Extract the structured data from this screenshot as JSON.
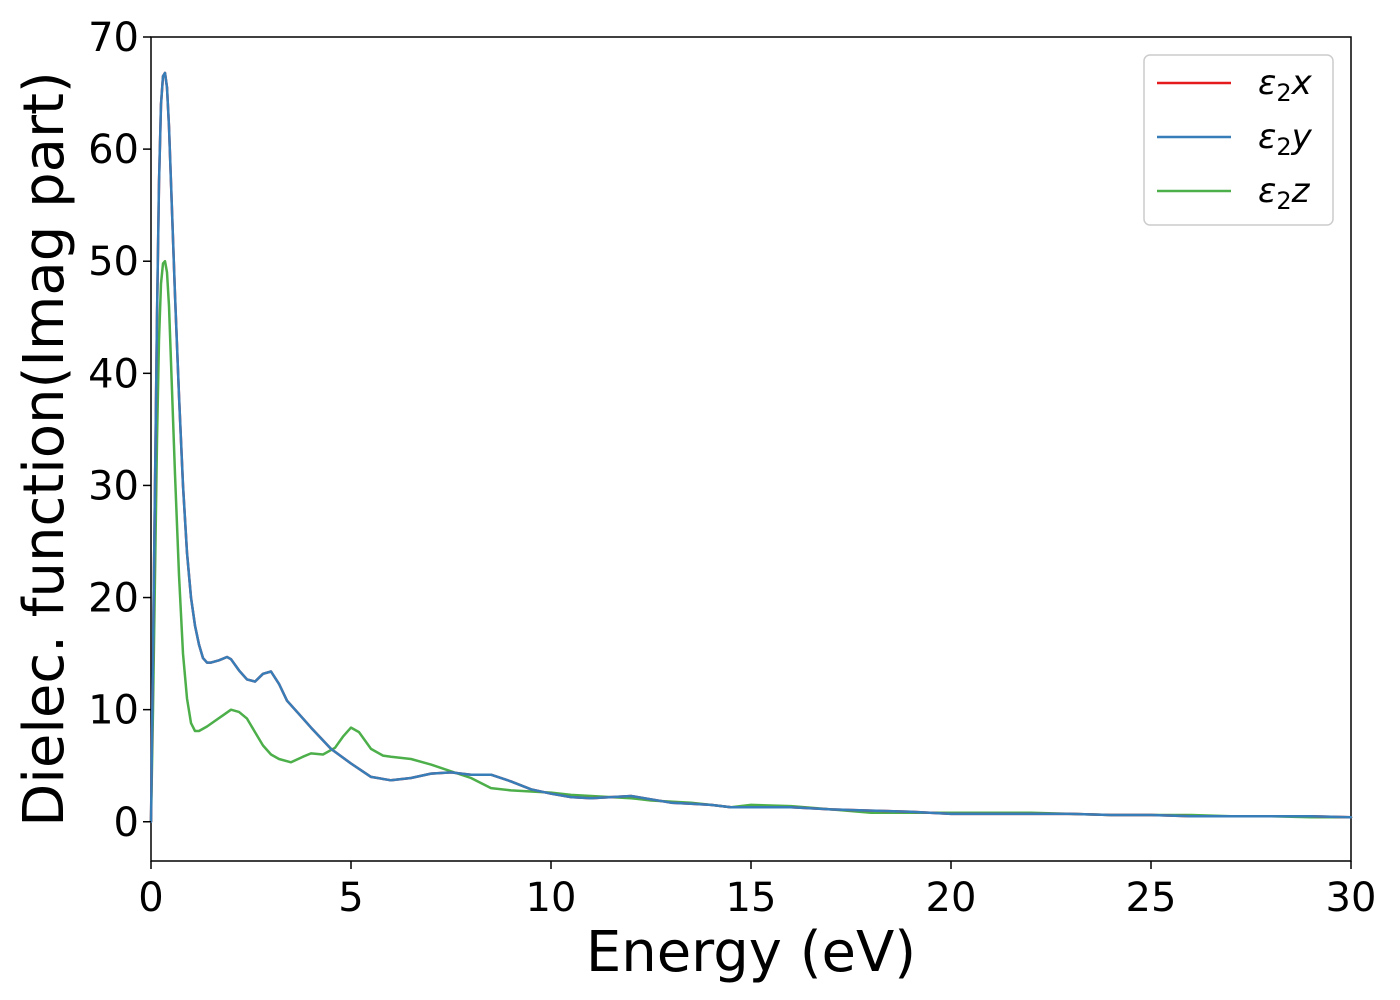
{
  "chart_data": {
    "type": "line",
    "xlabel": "Energy (eV)",
    "ylabel": "Dielec. function(Imag part)",
    "xlim": [
      0,
      30
    ],
    "ylim": [
      -3.5,
      70
    ],
    "xticks": [
      0,
      5,
      10,
      15,
      20,
      25,
      30
    ],
    "yticks": [
      0,
      10,
      20,
      30,
      40,
      50,
      60,
      70
    ],
    "grid": false,
    "legend_position": "top-right",
    "series": [
      {
        "name": "ε2x",
        "legend": {
          "base": "ε",
          "sub": "2",
          "tail": "x"
        },
        "color": "#e41a1c",
        "x": [
          0,
          0.05,
          0.1,
          0.15,
          0.2,
          0.25,
          0.3,
          0.35,
          0.4,
          0.45,
          0.5,
          0.6,
          0.7,
          0.8,
          0.9,
          1.0,
          1.1,
          1.2,
          1.3,
          1.4,
          1.5,
          1.7,
          1.9,
          2.0,
          2.2,
          2.4,
          2.6,
          2.8,
          3.0,
          3.2,
          3.4,
          3.7,
          4.0,
          4.5,
          5.0,
          5.5,
          6.0,
          6.5,
          7.0,
          7.5,
          8.0,
          8.5,
          9.0,
          9.5,
          10.0,
          10.5,
          11.0,
          11.5,
          12.0,
          12.5,
          13.0,
          13.5,
          14.0,
          14.5,
          15.0,
          16.0,
          17.0,
          18.0,
          19.0,
          20.0,
          21.0,
          22.0,
          23.0,
          24.0,
          25.0,
          26.0,
          27.0,
          28.0,
          29.0,
          30.0
        ],
        "values": [
          0,
          15,
          30,
          45,
          57,
          64,
          66.5,
          66.8,
          65.5,
          62,
          57,
          47,
          38,
          30,
          24,
          20,
          17.5,
          15.8,
          14.6,
          14.2,
          14.2,
          14.4,
          14.7,
          14.5,
          13.5,
          12.7,
          12.5,
          13.2,
          13.4,
          12.3,
          10.8,
          9.6,
          8.4,
          6.5,
          5.2,
          4.0,
          3.7,
          3.9,
          4.3,
          4.4,
          4.2,
          4.2,
          3.6,
          2.9,
          2.5,
          2.2,
          2.1,
          2.2,
          2.3,
          2.0,
          1.7,
          1.6,
          1.5,
          1.3,
          1.3,
          1.3,
          1.1,
          1.0,
          0.9,
          0.7,
          0.7,
          0.7,
          0.7,
          0.6,
          0.6,
          0.5,
          0.5,
          0.5,
          0.5,
          0.4
        ]
      },
      {
        "name": "ε2y",
        "legend": {
          "base": "ε",
          "sub": "2",
          "tail": "y"
        },
        "color": "#377eb8",
        "x": [
          0,
          0.05,
          0.1,
          0.15,
          0.2,
          0.25,
          0.3,
          0.35,
          0.4,
          0.45,
          0.5,
          0.6,
          0.7,
          0.8,
          0.9,
          1.0,
          1.1,
          1.2,
          1.3,
          1.4,
          1.5,
          1.7,
          1.9,
          2.0,
          2.2,
          2.4,
          2.6,
          2.8,
          3.0,
          3.2,
          3.4,
          3.7,
          4.0,
          4.5,
          5.0,
          5.5,
          6.0,
          6.5,
          7.0,
          7.5,
          8.0,
          8.5,
          9.0,
          9.5,
          10.0,
          10.5,
          11.0,
          11.5,
          12.0,
          12.5,
          13.0,
          13.5,
          14.0,
          14.5,
          15.0,
          16.0,
          17.0,
          18.0,
          19.0,
          20.0,
          21.0,
          22.0,
          23.0,
          24.0,
          25.0,
          26.0,
          27.0,
          28.0,
          29.0,
          30.0
        ],
        "values": [
          0,
          15,
          30,
          45,
          57,
          64,
          66.5,
          66.8,
          65.5,
          62,
          57,
          47,
          38,
          30,
          24,
          20,
          17.5,
          15.8,
          14.6,
          14.2,
          14.2,
          14.4,
          14.7,
          14.5,
          13.5,
          12.7,
          12.5,
          13.2,
          13.4,
          12.3,
          10.8,
          9.6,
          8.4,
          6.5,
          5.2,
          4.0,
          3.7,
          3.9,
          4.3,
          4.4,
          4.2,
          4.2,
          3.6,
          2.9,
          2.5,
          2.2,
          2.1,
          2.2,
          2.3,
          2.0,
          1.7,
          1.6,
          1.5,
          1.3,
          1.3,
          1.3,
          1.1,
          1.0,
          0.9,
          0.7,
          0.7,
          0.7,
          0.7,
          0.6,
          0.6,
          0.5,
          0.5,
          0.5,
          0.5,
          0.4
        ]
      },
      {
        "name": "ε2z",
        "legend": {
          "base": "ε",
          "sub": "2",
          "tail": "z"
        },
        "color": "#4daf4a",
        "x": [
          0,
          0.05,
          0.1,
          0.15,
          0.2,
          0.25,
          0.3,
          0.35,
          0.4,
          0.45,
          0.5,
          0.6,
          0.7,
          0.8,
          0.9,
          1.0,
          1.1,
          1.2,
          1.4,
          1.6,
          1.8,
          2.0,
          2.2,
          2.4,
          2.6,
          2.8,
          3.0,
          3.2,
          3.5,
          3.8,
          4.0,
          4.3,
          4.6,
          4.8,
          5.0,
          5.2,
          5.5,
          5.8,
          6.0,
          6.5,
          7.0,
          7.5,
          8.0,
          8.5,
          9.0,
          9.5,
          10.0,
          10.5,
          11.0,
          11.5,
          12.0,
          12.5,
          13.0,
          13.5,
          14.0,
          14.5,
          15.0,
          16.0,
          17.0,
          18.0,
          19.0,
          20.0,
          21.0,
          22.0,
          23.0,
          24.0,
          25.0,
          26.0,
          27.0,
          28.0,
          29.0,
          30.0
        ],
        "values": [
          0,
          10,
          22,
          34,
          43,
          48,
          49.8,
          50,
          49,
          46,
          41,
          31,
          22,
          15,
          11,
          8.8,
          8.1,
          8.1,
          8.5,
          9.0,
          9.5,
          10.0,
          9.8,
          9.2,
          8.0,
          6.8,
          6.0,
          5.6,
          5.3,
          5.8,
          6.1,
          6.0,
          6.6,
          7.6,
          8.4,
          8.0,
          6.5,
          5.9,
          5.8,
          5.6,
          5.1,
          4.5,
          3.9,
          3.0,
          2.8,
          2.7,
          2.6,
          2.4,
          2.3,
          2.2,
          2.1,
          1.9,
          1.8,
          1.7,
          1.5,
          1.3,
          1.5,
          1.4,
          1.1,
          0.8,
          0.8,
          0.8,
          0.8,
          0.8,
          0.7,
          0.6,
          0.6,
          0.6,
          0.5,
          0.5,
          0.4,
          0.4
        ]
      }
    ]
  }
}
